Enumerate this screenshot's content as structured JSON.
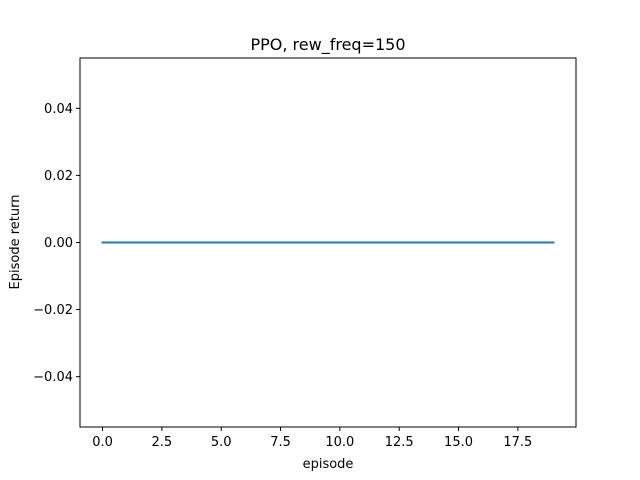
{
  "chart_data": {
    "type": "line",
    "title": "PPO, rew_freq=150",
    "xlabel": "episode",
    "ylabel": "Episode return",
    "xlim": [
      -0.95,
      19.95
    ],
    "ylim": [
      -0.055,
      0.055
    ],
    "x_ticks": [
      0.0,
      2.5,
      5.0,
      7.5,
      10.0,
      12.5,
      15.0,
      17.5
    ],
    "x_tick_labels": [
      "0.0",
      "2.5",
      "5.0",
      "7.5",
      "10.0",
      "12.5",
      "15.0",
      "17.5"
    ],
    "y_ticks": [
      -0.04,
      -0.02,
      0.0,
      0.02,
      0.04
    ],
    "y_tick_labels": [
      "−0.04",
      "−0.02",
      "0.00",
      "0.02",
      "0.04"
    ],
    "grid": false,
    "legend": "none",
    "series": [
      {
        "color": "#1f77b4",
        "x": [
          0,
          1,
          2,
          3,
          4,
          5,
          6,
          7,
          8,
          9,
          10,
          11,
          12,
          13,
          14,
          15,
          16,
          17,
          18,
          19
        ],
        "y": [
          0,
          0,
          0,
          0,
          0,
          0,
          0,
          0,
          0,
          0,
          0,
          0,
          0,
          0,
          0,
          0,
          0,
          0,
          0,
          0
        ]
      }
    ]
  }
}
